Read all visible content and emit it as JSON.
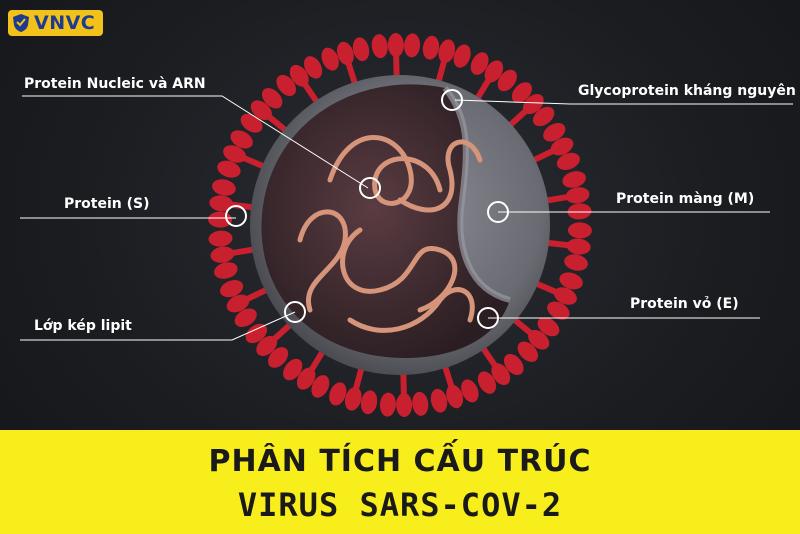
{
  "logo": {
    "text": "VNVC",
    "icon": "shield-icon",
    "color": "#f2c21b"
  },
  "labels": {
    "nucleic": "Protein Nucleic và ARN",
    "glyco": "Glycoprotein kháng nguyên",
    "spike": "Protein (S)",
    "membrane": "Protein màng (M)",
    "lipid": "Lớp kép lipit",
    "envelope": "Protein vỏ (E)"
  },
  "banner": {
    "line1": "PHÂN TÍCH CẤU TRÚC",
    "line2": "VIRUS SARS-COV-2",
    "color": "#f8ee1c"
  },
  "colors": {
    "spike": "#c8202e",
    "shell": "#6e6e76",
    "interior": "#3a2a30",
    "rna": "#d6957a"
  }
}
